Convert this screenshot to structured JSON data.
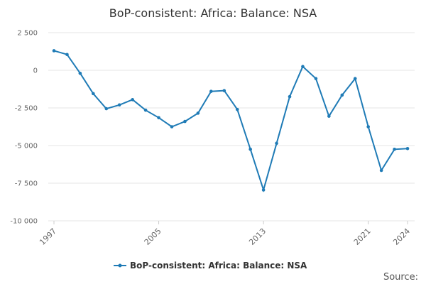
{
  "chart_data": {
    "type": "line",
    "title": "BoP-consistent: Africa: Balance: NSA",
    "xlabel": "",
    "ylabel": "",
    "x": [
      1997,
      1998,
      1999,
      2000,
      2001,
      2002,
      2003,
      2004,
      2005,
      2006,
      2007,
      2008,
      2009,
      2010,
      2011,
      2012,
      2013,
      2014,
      2015,
      2016,
      2017,
      2018,
      2019,
      2020,
      2021,
      2022,
      2023,
      2024
    ],
    "x_tick_labels": [
      "1997",
      "2005",
      "2013",
      "2021",
      "2024"
    ],
    "ylim": [
      -10000,
      2500
    ],
    "y_tick_labels": [
      "2 500",
      "0",
      "-2 500",
      "-5 000",
      "-7 500",
      "-10 000"
    ],
    "y_tick_values": [
      2500,
      0,
      -2500,
      -5000,
      -7500,
      -10000
    ],
    "grid": true,
    "legend_position": "bottom",
    "series": [
      {
        "name": "BoP-consistent: Africa: Balance: NSA",
        "color": "#1f7bb6",
        "values": [
          1300,
          1050,
          -200,
          -1550,
          -2550,
          -2300,
          -1950,
          -2650,
          -3150,
          -3750,
          -3400,
          -2850,
          -1400,
          -1350,
          -2600,
          -5250,
          -7950,
          -4850,
          -1750,
          250,
          -550,
          -3050,
          -1650,
          -550,
          -3750,
          -6650,
          -5250,
          -5200
        ]
      }
    ]
  },
  "footer": {
    "source_label": "Source:"
  }
}
